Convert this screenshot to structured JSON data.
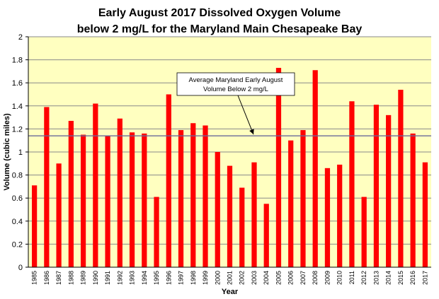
{
  "chart_data": {
    "type": "bar",
    "title_line1": "Early August 2017 Dissolved Oxygen Volume",
    "title_line2": "below 2 mg/L for the Maryland Main Chesapeake Bay",
    "xlabel": "Year",
    "ylabel": "Volume (cubic miles)",
    "ylim": [
      0,
      2
    ],
    "yticks": [
      "0",
      "0.2",
      "0.4",
      "0.6",
      "0.8",
      "1",
      "1.2",
      "1.4",
      "1.6",
      "1.8",
      "2"
    ],
    "grid": true,
    "colors": {
      "bar": "#ff0000",
      "plot_background": "#ffffc0",
      "average_line": "#6a6a9a",
      "grid": "#8a8a8a"
    },
    "categories": [
      "1985",
      "1986",
      "1987",
      "1988",
      "1989",
      "1990",
      "1991",
      "1992",
      "1993",
      "1994",
      "1995",
      "1996",
      "1997",
      "1998",
      "1999",
      "2000",
      "2001",
      "2002",
      "2003",
      "2004",
      "2005",
      "2006",
      "2007",
      "2008",
      "2009",
      "2010",
      "2011",
      "2012",
      "2013",
      "2014",
      "2015",
      "2016",
      "2017"
    ],
    "values": [
      0.71,
      1.39,
      0.9,
      1.27,
      1.15,
      1.42,
      1.14,
      1.29,
      1.17,
      1.16,
      0.61,
      1.5,
      1.19,
      1.25,
      1.23,
      1.0,
      0.88,
      0.69,
      0.91,
      0.55,
      1.73,
      1.1,
      1.19,
      1.71,
      0.86,
      0.89,
      1.44,
      0.61,
      1.41,
      1.32,
      1.54,
      1.16,
      0.91
    ],
    "average": 1.14,
    "annotation_line1": "Average Maryland Early August",
    "annotation_line2": "Volume Below 2 mg/L"
  }
}
